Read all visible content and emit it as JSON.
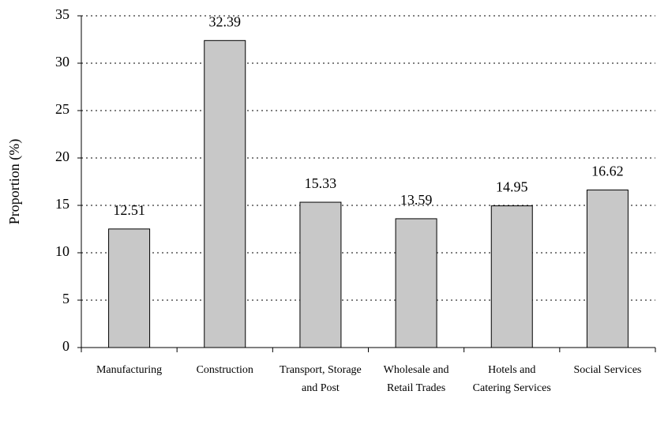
{
  "chart_data": {
    "type": "bar",
    "y_label": "Proportion (%)",
    "categories": [
      "Manufacturing",
      "Construction",
      "Transport, Storage and Post",
      "Wholesale and Retail Trades",
      "Hotels and Catering Services",
      "Social Services"
    ],
    "values": [
      12.51,
      32.39,
      15.33,
      13.59,
      14.95,
      16.62
    ],
    "color": "#c8c8c8",
    "ylim": [
      0,
      35
    ],
    "yticks": [
      0,
      5,
      10,
      15,
      20,
      25,
      30,
      35
    ],
    "grid": true
  }
}
